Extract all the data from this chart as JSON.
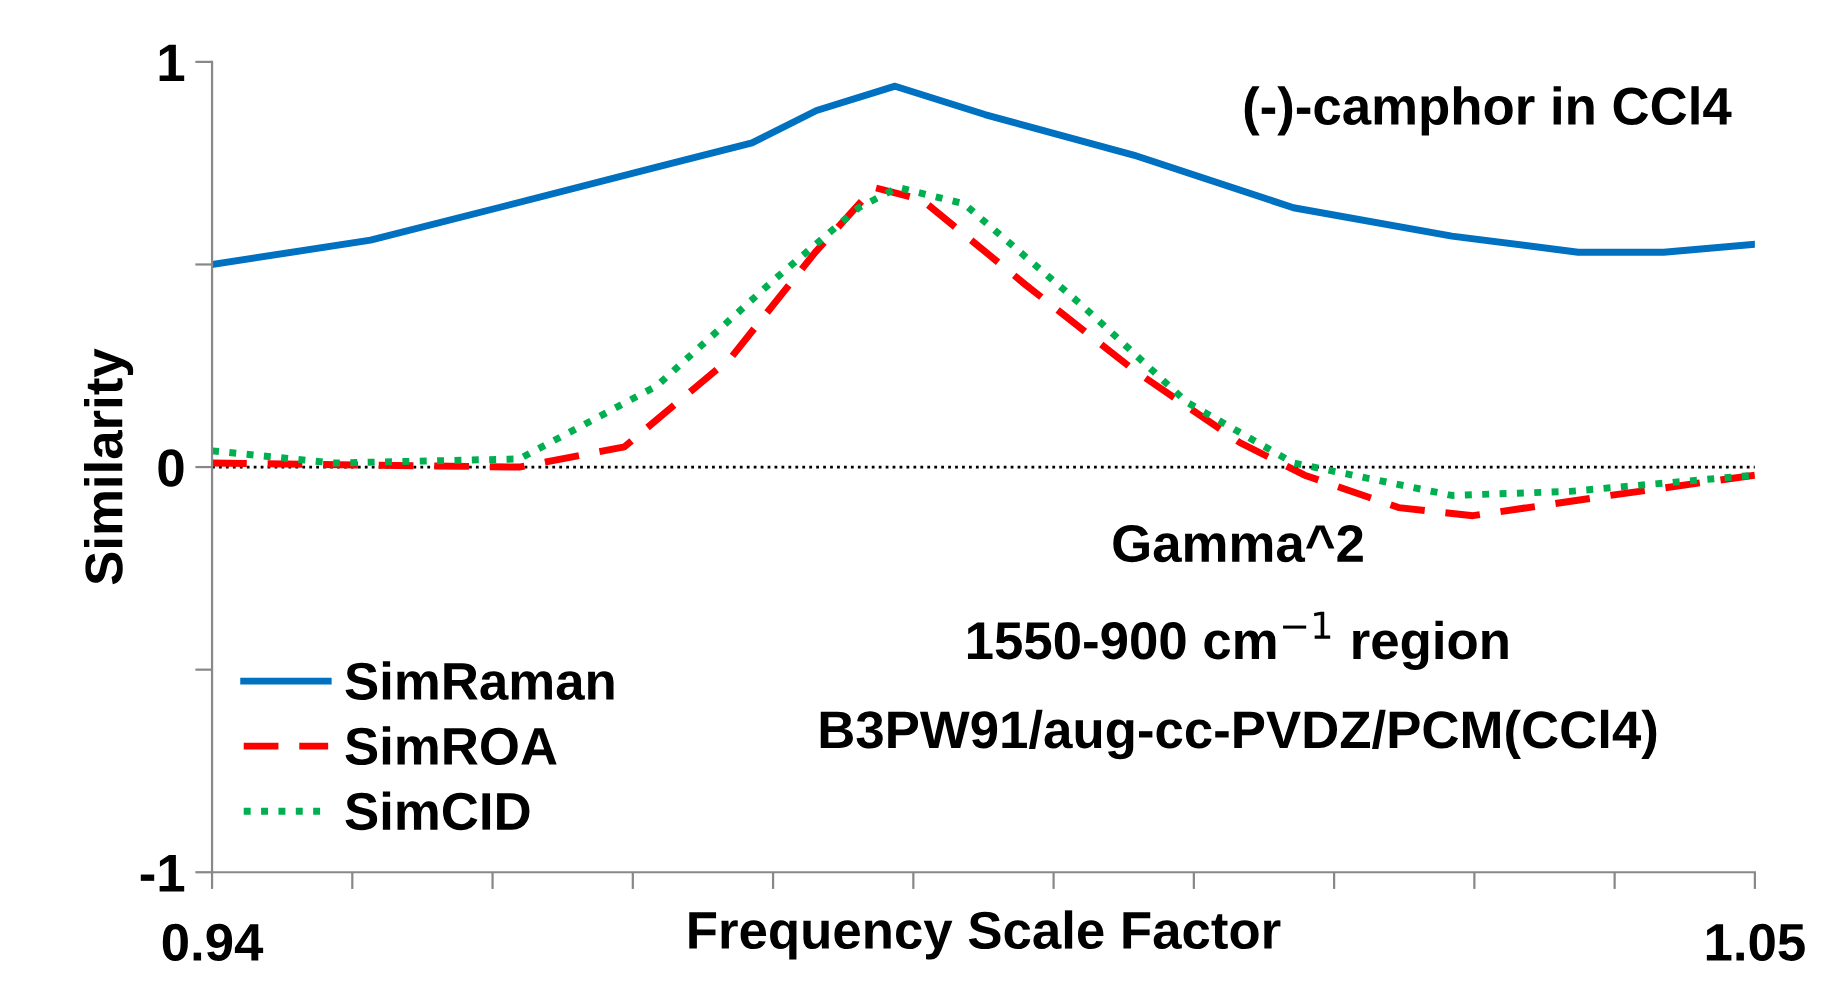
{
  "chart_data": {
    "type": "line",
    "title": "(-)-camphor in CCl4",
    "xlabel": "Frequency Scale Factor",
    "ylabel": "Similarity",
    "annotations": [
      "Gamma^2",
      "1550-900 cm$^{−1}$ region",
      "B3PW91/aug-cc-PVDZ/PCM(CCl4)"
    ],
    "xlim": [
      0.94,
      1.05
    ],
    "ylim": [
      -1,
      1
    ],
    "xticks": [
      0.94,
      {
        "value": 0.95,
        "label": null
      },
      {
        "value": 0.96,
        "label": null
      },
      {
        "value": 0.97,
        "label": null
      },
      {
        "value": 0.98,
        "label": null
      },
      {
        "value": 0.99,
        "label": null
      },
      {
        "value": 1.0,
        "label": null
      },
      {
        "value": 1.01,
        "label": null
      },
      {
        "value": 1.02,
        "label": null
      },
      {
        "value": 1.03,
        "label": null
      },
      {
        "value": 1.04,
        "label": null
      },
      1.05
    ],
    "yticks": [
      {
        "value": -1,
        "label": "-1"
      },
      {
        "value": -0.5,
        "label": null
      },
      0,
      {
        "value": 0.5,
        "label": null
      },
      1
    ],
    "ref_lines": [
      {
        "axis": "y",
        "value": 0,
        "color": "#000000",
        "line_style": "dotted"
      }
    ],
    "legend": "bottom left",
    "grid": false,
    "marker": "none",
    "series": [
      {
        "name": "SimRaman",
        "color": "#0070c0",
        "line_style": "solid",
        "x": [
          0.94,
          0.9513,
          0.9604,
          0.9717,
          0.9785,
          0.9831,
          0.9887,
          0.9951,
          1.0057,
          1.0171,
          1.0284,
          1.0374,
          1.0435,
          1.05
        ],
        "values": [
          0.5,
          0.56,
          0.64,
          0.74,
          0.8,
          0.88,
          0.94,
          0.87,
          0.77,
          0.64,
          0.57,
          0.53,
          0.53,
          0.55
        ]
      },
      {
        "name": "SimROA",
        "color": "#ff0000",
        "line_style": "dashed",
        "x": [
          0.94,
          0.9619,
          0.9694,
          0.977,
          0.983,
          0.9872,
          0.9906,
          0.998,
          1.0057,
          1.0133,
          1.0179,
          1.0246,
          1.0299,
          1.0397,
          1.05
        ],
        "values": [
          0.01,
          0.0,
          0.05,
          0.27,
          0.53,
          0.69,
          0.66,
          0.45,
          0.24,
          0.06,
          -0.02,
          -0.1,
          -0.12,
          -0.07,
          -0.02
        ]
      },
      {
        "name": "SimCID",
        "color": "#00b050",
        "line_style": "dotted",
        "x": [
          0.94,
          0.9487,
          0.9619,
          0.9717,
          0.98,
          0.9861,
          0.9889,
          0.9936,
          1.002,
          1.0095,
          1.0171,
          1.0284,
          1.0368,
          1.05
        ],
        "values": [
          0.04,
          0.01,
          0.02,
          0.2,
          0.46,
          0.64,
          0.69,
          0.65,
          0.4,
          0.16,
          0.01,
          -0.07,
          -0.06,
          -0.02
        ]
      }
    ]
  }
}
